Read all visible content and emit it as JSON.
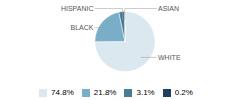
{
  "chart_data": {
    "type": "pie",
    "categories": [
      "WHITE",
      "BLACK",
      "HISPANIC",
      "ASIAN"
    ],
    "values": [
      74.8,
      21.8,
      3.1,
      0.2
    ],
    "value_labels": [
      "74.8%",
      "21.8%",
      "3.1%",
      "0.2%"
    ],
    "colors": [
      "#dce8f0",
      "#7aaec8",
      "#4a7c96",
      "#1e4060"
    ],
    "legend": "bottom"
  }
}
